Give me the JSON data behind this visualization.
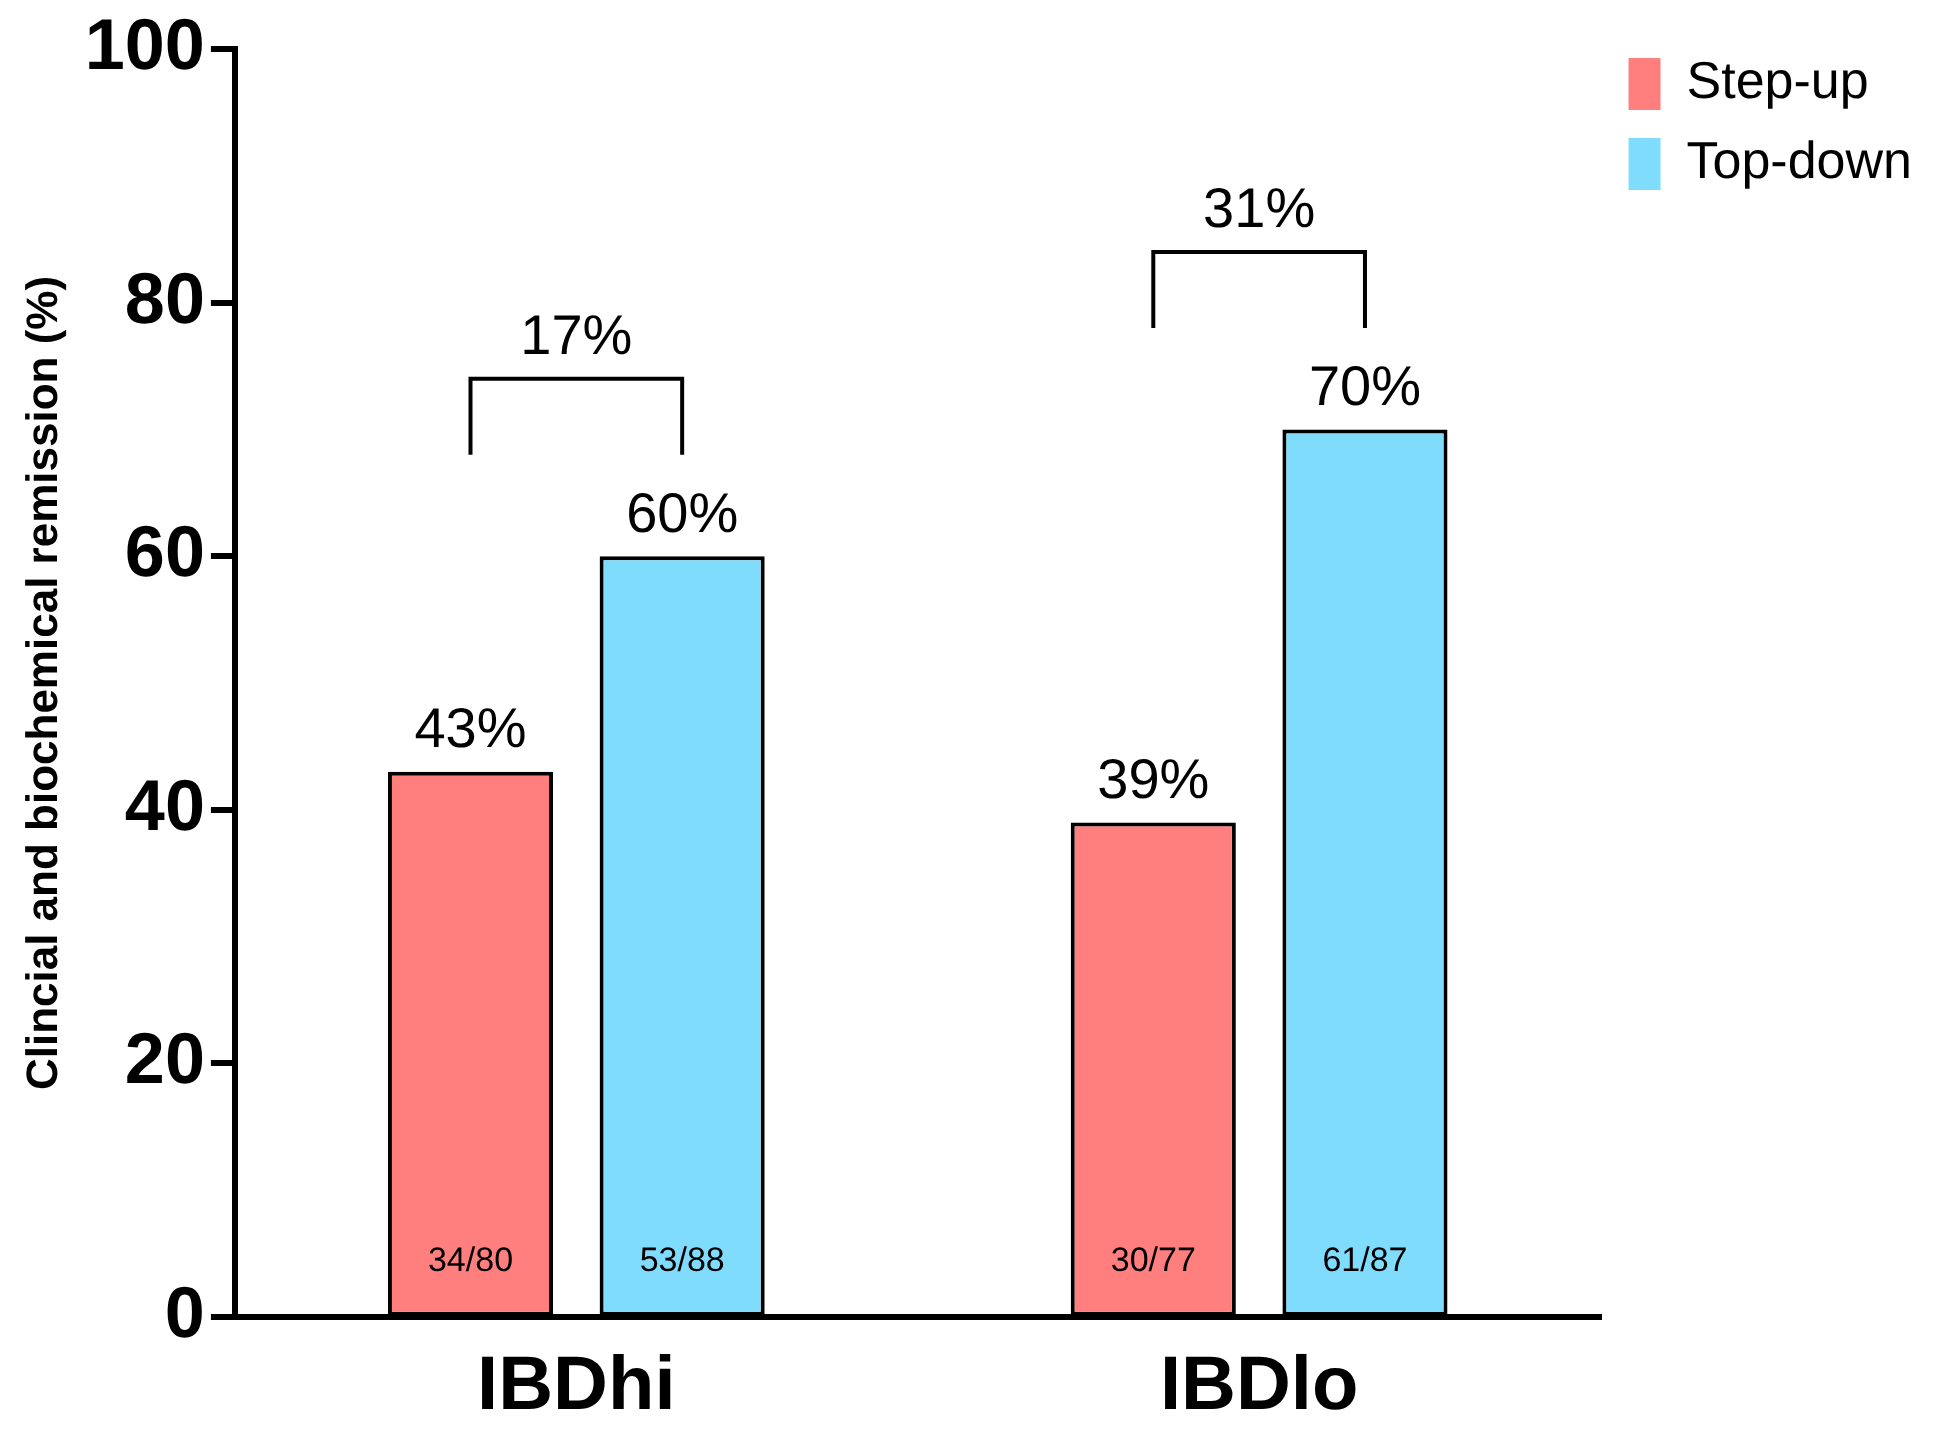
{
  "chart_data": {
    "type": "bar",
    "ylabel": "Clincial and biochemical remission (%)",
    "categories": [
      "IBDhi",
      "IBDlo"
    ],
    "series": [
      {
        "name": "Step-up",
        "color": "#ff7f7f",
        "values": [
          43,
          39
        ],
        "value_labels": [
          "43%",
          "39%"
        ]
      },
      {
        "name": "Top-down",
        "color": "#80dcfc",
        "values": [
          60,
          70
        ],
        "value_labels": [
          "60%",
          "70%"
        ]
      }
    ],
    "ylim": [
      0,
      100
    ],
    "yticks": [
      0,
      20,
      40,
      60,
      80,
      100
    ],
    "grid": false,
    "legend": "top right",
    "annotations": [
      "34/80",
      "53/88",
      "30/77",
      "61/87",
      "17%",
      "31%"
    ]
  }
}
